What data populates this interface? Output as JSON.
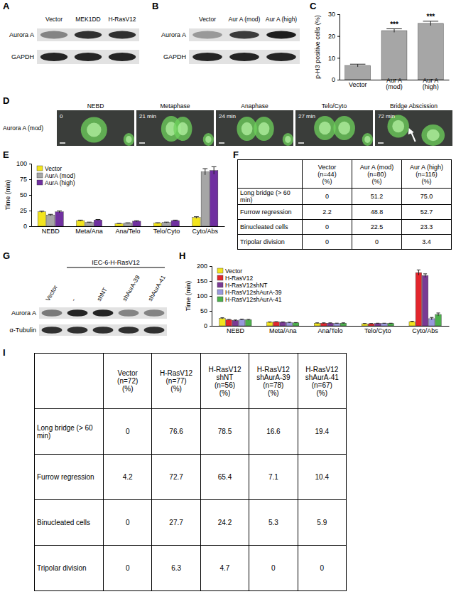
{
  "panel_labels": [
    "A",
    "B",
    "C",
    "D",
    "E",
    "F",
    "G",
    "H",
    "I"
  ],
  "blots": [
    {
      "lanes": [
        "Vector",
        "MEK1DD",
        "H-RasV12"
      ],
      "rows": [
        {
          "label": "Aurora A",
          "intensity": [
            0.45,
            0.85,
            0.85
          ]
        },
        {
          "label": "GAPDH",
          "intensity": [
            0.9,
            0.9,
            0.9
          ]
        }
      ]
    },
    {
      "lanes": [
        "Vector",
        "Aur A (mod)",
        "Aur A (high)"
      ],
      "rows": [
        {
          "label": "Aurora A",
          "intensity": [
            0.35,
            0.8,
            0.95
          ]
        },
        {
          "label": "GAPDH",
          "intensity": [
            0.9,
            0.9,
            0.9
          ]
        }
      ]
    },
    {
      "header": "IEC-6-H-RasV12",
      "lanes": [
        "Vector",
        "-",
        "shNT",
        "shAurA-39",
        "shAurA-41"
      ],
      "rows": [
        {
          "label": "Aurora A",
          "intensity": [
            0.5,
            0.9,
            0.9,
            0.45,
            0.45
          ]
        },
        {
          "label": "α-Tubulin",
          "intensity": [
            0.85,
            0.85,
            0.85,
            0.85,
            0.85
          ]
        }
      ]
    }
  ],
  "time_lapse": {
    "row_label": "Aurora A (mod)",
    "frames": [
      {
        "stage": "NEBD",
        "time": "0"
      },
      {
        "stage": "Metaphase",
        "time": "21 min"
      },
      {
        "stage": "Anaphase",
        "time": "24 min"
      },
      {
        "stage": "Telo/Cyto",
        "time": "27 min"
      },
      {
        "stage": "Bridge Abscission",
        "time": "72 min"
      }
    ]
  },
  "chart_data": [
    {
      "type": "bar",
      "ylabel": "p-H3 positive cells (%)",
      "categories": [
        "Vector",
        "Aur A (mod)",
        "Aur A (high)"
      ],
      "values": [
        6.5,
        22.5,
        25.8
      ],
      "errors": [
        0.6,
        0.8,
        1.0
      ],
      "annotations": [
        null,
        "***",
        "***"
      ],
      "color": "#a6a6a6",
      "ylim": [
        0,
        30
      ],
      "yticks": [
        0,
        10,
        20,
        30
      ]
    },
    {
      "type": "bar",
      "ylabel": "Time (min)",
      "categories": [
        "NEBD",
        "Meta/Ana",
        "Ana/Telo",
        "Telo/Cyto",
        "Cyto/Abs"
      ],
      "ylim": [
        0,
        100
      ],
      "yticks": [
        0,
        25,
        50,
        75,
        100
      ],
      "legend": "upper left",
      "series": [
        {
          "name": "Vector",
          "color": "#f2e41e",
          "values": [
            23,
            9,
            4,
            5,
            14
          ],
          "errors": [
            1,
            0.8,
            0.5,
            0.6,
            1.2
          ]
        },
        {
          "name": "AurA (mod)",
          "color": "#a6a6a6",
          "values": [
            18,
            6,
            5,
            6,
            87
          ],
          "errors": [
            1,
            0.6,
            0.5,
            0.6,
            5
          ]
        },
        {
          "name": "AurA (high)",
          "color": "#7030a0",
          "values": [
            23,
            10,
            8,
            9,
            89
          ],
          "errors": [
            1.5,
            0.8,
            0.8,
            0.8,
            6
          ]
        }
      ]
    },
    {
      "type": "bar",
      "ylabel": "Time (min)",
      "categories": [
        "NEBD",
        "Meta/Ana",
        "Ana/Telo",
        "Telo/Cyto",
        "Cyto/Abs"
      ],
      "ylim": [
        0,
        200
      ],
      "yticks": [
        0,
        50,
        100,
        150,
        200
      ],
      "legend": "upper left",
      "series": [
        {
          "name": "Vector",
          "color": "#f2e41e",
          "values": [
            25,
            12,
            9,
            7,
            14
          ],
          "errors": [
            2,
            1,
            1,
            0.8,
            1.5
          ]
        },
        {
          "name": "H-RasV12",
          "color": "#e3262d",
          "values": [
            20,
            13,
            9,
            7,
            178
          ],
          "errors": [
            1.5,
            1,
            1,
            0.8,
            9
          ]
        },
        {
          "name": "H-RasV12shNT",
          "color": "#7a3a94",
          "values": [
            18,
            12,
            9,
            8,
            168
          ],
          "errors": [
            1.5,
            1,
            1,
            0.8,
            6
          ]
        },
        {
          "name": "H-RasV12shAurA-39",
          "color": "#9999dd",
          "values": [
            21,
            11,
            8,
            8,
            24
          ],
          "errors": [
            1.5,
            1,
            1,
            0.8,
            4
          ]
        },
        {
          "name": "H-RasV12shAurA-41",
          "color": "#4cb04c",
          "values": [
            20,
            10,
            9,
            8,
            38
          ],
          "errors": [
            1.5,
            1,
            1,
            0.8,
            5
          ]
        }
      ]
    }
  ],
  "tables": [
    {
      "columns": [
        [
          "Vector",
          "(n=44)",
          "(%)"
        ],
        [
          "Aur A (mod)",
          "(n=80)",
          "(%)"
        ],
        [
          "Aur A (high)",
          "(n=116)",
          "(%)"
        ]
      ],
      "rows": [
        {
          "label": "Long bridge (> 60 min)",
          "cells": [
            "0",
            "51.2",
            "75.0"
          ]
        },
        {
          "label": "Furrow regression",
          "cells": [
            "2.2",
            "48.8",
            "52.7"
          ]
        },
        {
          "label": "Binucleated cells",
          "cells": [
            "0",
            "22.5",
            "23.3"
          ]
        },
        {
          "label": "Tripolar division",
          "cells": [
            "0",
            "0",
            "3.4"
          ]
        }
      ]
    },
    {
      "columns": [
        [
          "Vector",
          "(n=72)",
          "(%)"
        ],
        [
          "H-RasV12",
          "(n=77)",
          "(%)"
        ],
        [
          "H-RasV12",
          "shNT",
          "(n=56)",
          "(%)"
        ],
        [
          "H-RasV12",
          "shAurA-39",
          "(n=78)",
          "(%)"
        ],
        [
          "H-RasV12",
          "shAurA-41",
          "(n=67)",
          "(%)"
        ]
      ],
      "rows": [
        {
          "label": "Long bridge (> 60 min)",
          "cells": [
            "0",
            "76.6",
            "78.5",
            "16.6",
            "19.4"
          ]
        },
        {
          "label": "Furrow regression",
          "cells": [
            "4.2",
            "72.7",
            "65.4",
            "7.1",
            "10.4"
          ]
        },
        {
          "label": "Binucleated cells",
          "cells": [
            "0",
            "27.7",
            "24.2",
            "5.3",
            "5.9"
          ]
        },
        {
          "label": "Tripolar division",
          "cells": [
            "0",
            "6.3",
            "4.7",
            "0",
            "0"
          ]
        }
      ]
    }
  ]
}
